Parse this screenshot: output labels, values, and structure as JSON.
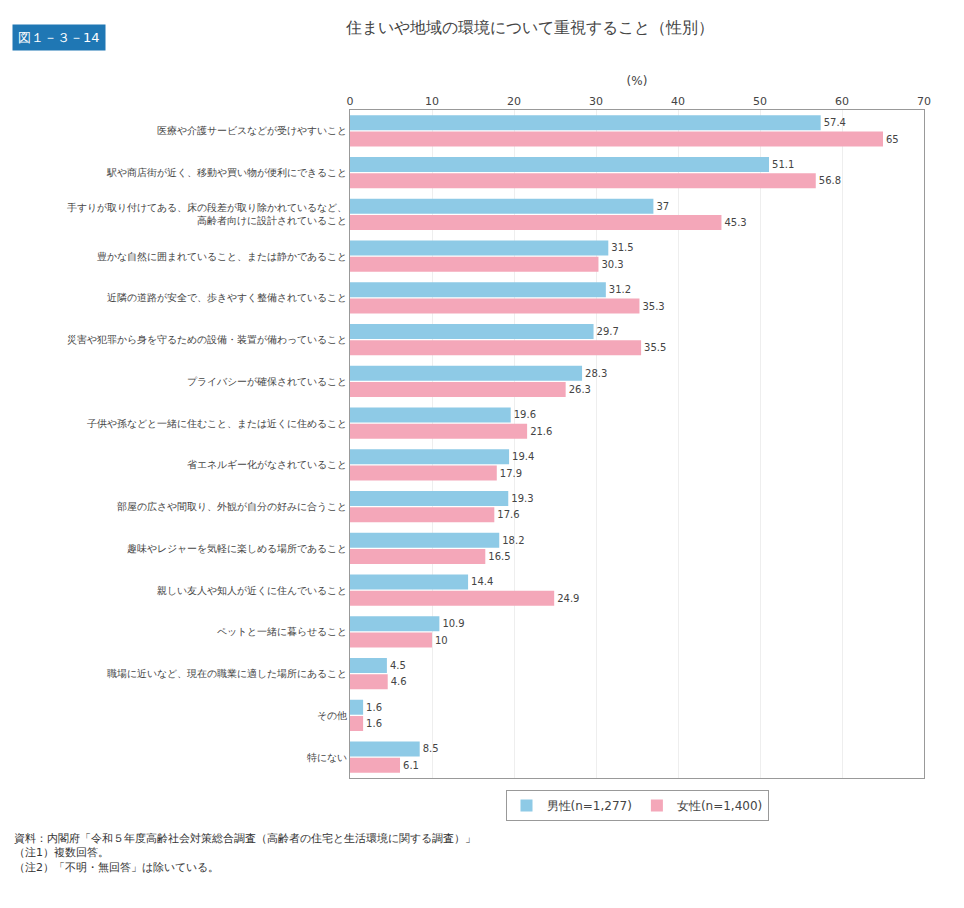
{
  "chart_data": {
    "type": "bar",
    "orientation": "horizontal",
    "title": "住まいや地域の環境について重視すること（性別）",
    "annotations": [
      "図１－３－14",
      "資料：内閣府「令和５年度高齢社会対策総合調査（高齢者の住宅と生活環境に関する調査）」\n（注1）複数回答。\n（注2）「不明・無回答」は除いている。"
    ],
    "xlabel": "(%)",
    "categories": [
      "医療や介護サービスなどが受けやすいこと",
      "駅や商店街が近く、移動や買い物が便利にできること",
      "手すりが取り付けてある、床の段差が取り除かれているなど、\n高齢者向けに設計されていること",
      "豊かな自然に囲まれていること、または静かであること",
      "近隣の道路が安全で、歩きやすく整備されていること",
      "災害や犯罪から身を守るための設備・装置が備わっていること",
      "プライバシーが確保されていること",
      "子供や孫などと一緒に住むこと、または近くに住めること",
      "省エネルギー化がなされていること",
      "部屋の広さや間取り、外観が自分の好みに合うこと",
      "趣味やレジャーを気軽に楽しめる場所であること",
      "親しい友人や知人が近くに住んでいること",
      "ペットと一緒に暮らせること",
      "職場に近いなど、現在の職業に適した場所にあること",
      "その他",
      "特にない"
    ],
    "series": [
      {
        "name": "男性(n=1,277)",
        "color": "#8ecae6",
        "values": [
          57.4,
          51.1,
          37.0,
          31.5,
          31.2,
          29.7,
          28.3,
          19.6,
          19.4,
          19.3,
          18.2,
          14.4,
          10.9,
          4.5,
          1.6,
          8.5
        ]
      },
      {
        "name": "女性(n=1,400)",
        "color": "#f4a7b9",
        "values": [
          65.0,
          56.8,
          45.3,
          30.3,
          35.3,
          35.5,
          26.3,
          21.6,
          17.9,
          17.6,
          16.5,
          24.9,
          10.0,
          4.6,
          1.6,
          6.1
        ]
      }
    ],
    "xlim": [
      0,
      70
    ],
    "xticks": [
      0,
      10,
      20,
      30,
      40,
      50,
      60,
      70
    ],
    "grid": true,
    "legend": "bottom",
    "data_labels": true
  }
}
